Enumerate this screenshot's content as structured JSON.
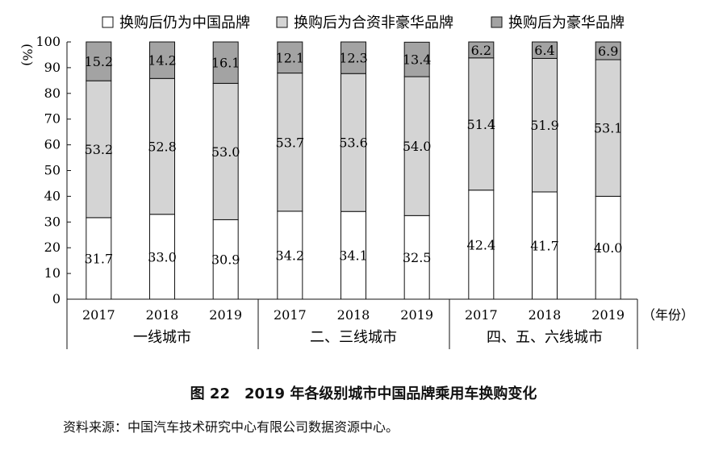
{
  "chart_data": {
    "type": "bar",
    "stacked": true,
    "title": "图 22　2019 年各级别城市中国品牌乘用车换购变化",
    "ylabel": "%",
    "xlabel": "（年份）",
    "ylim": [
      0,
      100
    ],
    "yticks": [
      0,
      10,
      20,
      30,
      40,
      50,
      60,
      70,
      80,
      90,
      100
    ],
    "grid": false,
    "legend_position": "top",
    "groups": [
      {
        "label": "一线城市",
        "categories": [
          "2017",
          "2018",
          "2019"
        ]
      },
      {
        "label": "二、三线城市",
        "categories": [
          "2017",
          "2018",
          "2019"
        ]
      },
      {
        "label": "四、五、六线城市",
        "categories": [
          "2017",
          "2018",
          "2019"
        ]
      }
    ],
    "series": [
      {
        "name": "换购后仍为中国品牌",
        "color": "#ffffff",
        "values": [
          31.7,
          33.0,
          30.9,
          34.2,
          34.1,
          32.5,
          42.4,
          41.7,
          40.0
        ]
      },
      {
        "name": "换购后为合资非豪华品牌",
        "color": "#d4d4d4",
        "values": [
          53.2,
          52.8,
          53.0,
          53.7,
          53.6,
          54.0,
          51.4,
          51.9,
          53.1
        ]
      },
      {
        "name": "换购后为豪华品牌",
        "color": "#a3a3a3",
        "values": [
          15.2,
          14.2,
          16.1,
          12.1,
          12.3,
          13.4,
          6.2,
          6.4,
          6.9
        ]
      }
    ]
  },
  "source_note": "资料来源：中国汽车技术研究中心有限公司数据资源中心。"
}
